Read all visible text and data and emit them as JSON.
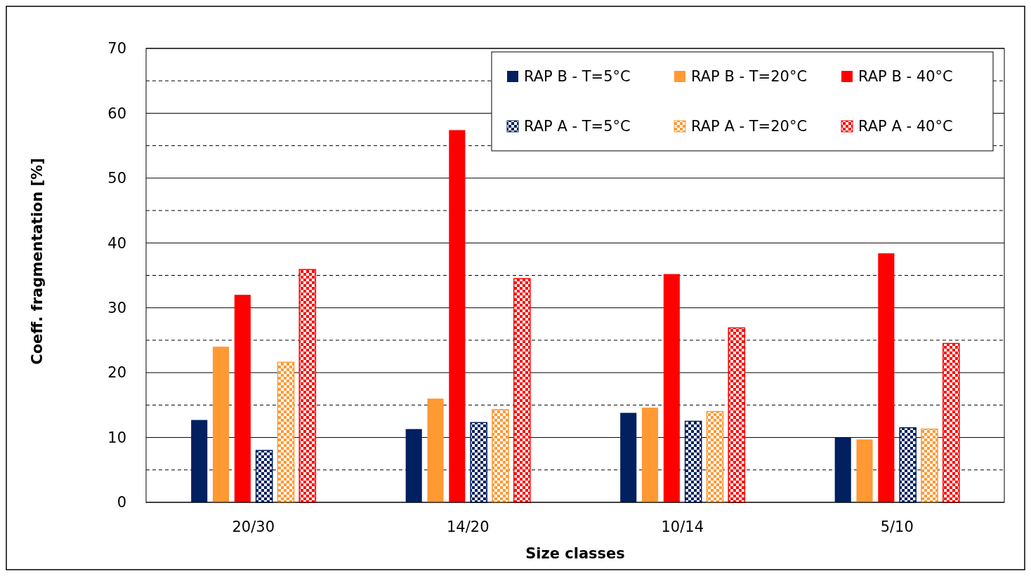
{
  "chart_data": {
    "type": "bar",
    "xlabel": "Size classes",
    "ylabel": "Coeff. fragmentation [%]",
    "categories": [
      "20/30",
      "14/20",
      "10/14",
      "5/10"
    ],
    "series": [
      {
        "name": "RAP B - T=5°C",
        "color": "#002060",
        "values": [
          12.7,
          11.3,
          13.8,
          10.0
        ]
      },
      {
        "name": "RAP B - T=20°C",
        "color": "#ff9933",
        "values": [
          24.0,
          16.0,
          14.6,
          9.7
        ]
      },
      {
        "name": "RAP B - 40°C",
        "color": "#ff0000",
        "values": [
          32.0,
          57.4,
          35.2,
          38.4
        ]
      },
      {
        "name": "RAP A - T=5°C",
        "color": "#002060",
        "values": [
          8.0,
          12.3,
          12.5,
          11.5
        ]
      },
      {
        "name": "RAP A - T=20°C",
        "color": "#ff9933",
        "values": [
          21.6,
          14.3,
          14.0,
          11.3
        ]
      },
      {
        "name": "RAP A - 40°C",
        "color": "#ff0000",
        "values": [
          35.9,
          34.5,
          26.9,
          24.5
        ]
      }
    ],
    "ylim": [
      0,
      70
    ],
    "yticks": [
      0,
      {
        "value": 5,
        "label": null
      },
      10,
      {
        "value": 15,
        "label": null
      },
      20,
      {
        "value": 25,
        "label": null
      },
      30,
      {
        "value": 35,
        "label": null
      },
      40,
      {
        "value": 45,
        "label": null
      },
      50,
      {
        "value": 55,
        "label": null
      },
      60,
      {
        "value": 65,
        "label": null
      },
      70
    ],
    "grid": "y",
    "legend": "top right"
  }
}
